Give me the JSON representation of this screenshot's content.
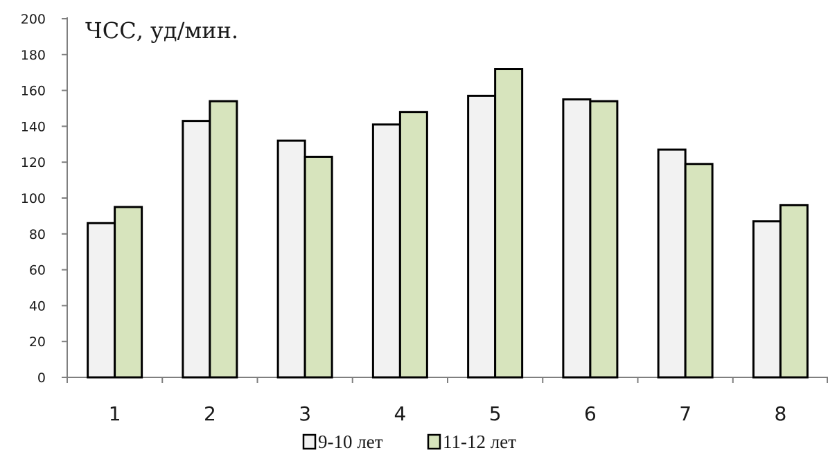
{
  "chart_data": {
    "type": "bar",
    "title": "ЧСС, уд/мин.",
    "xlabel": "",
    "ylabel": "",
    "ylim": [
      0,
      200
    ],
    "ytick_step": 20,
    "grid": false,
    "legend_position": "bottom",
    "categories": [
      "1",
      "2",
      "3",
      "4",
      "5",
      "6",
      "7",
      "8"
    ],
    "series": [
      {
        "name": "9-10 лет",
        "color": "#f2f2f2",
        "values": [
          86,
          143,
          132,
          141,
          157,
          155,
          127,
          87
        ]
      },
      {
        "name": "11-12 лет",
        "color": "#d7e4bd",
        "values": [
          95,
          154,
          123,
          148,
          172,
          154,
          119,
          96
        ]
      }
    ]
  }
}
